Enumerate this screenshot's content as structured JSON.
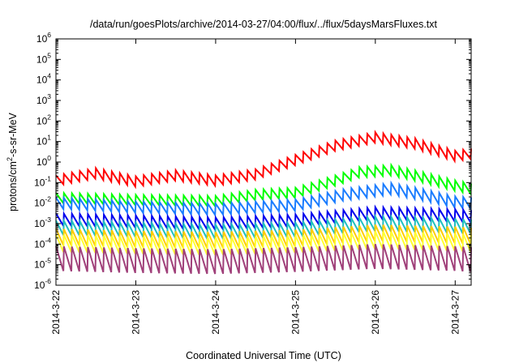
{
  "chart_data": {
    "type": "line",
    "title": "/data/run/goesPlots/archive/2014-03-27/04:00/flux/../flux/5daysMarsFluxes.txt",
    "xlabel": "Coordinated Universal Time (UTC)",
    "ylabel_main": "protons/cm",
    "ylabel_sup": "2",
    "ylabel_tail": "-s-sr-MeV",
    "xlim": [
      0,
      5.2
    ],
    "ylim_log10": [
      -6,
      6
    ],
    "y_scale": "log",
    "grid": false,
    "legend": "none",
    "x_ticks": [
      {
        "x": 0,
        "label": "2014-3-22"
      },
      {
        "x": 1,
        "label": "2014-3-23"
      },
      {
        "x": 2,
        "label": "2014-3-24"
      },
      {
        "x": 3,
        "label": "2014-3-25"
      },
      {
        "x": 4,
        "label": "2014-3-26"
      },
      {
        "x": 5,
        "label": "2014-3-27"
      }
    ],
    "y_ticks": [
      {
        "e": 6,
        "base": "10",
        "exp": "6"
      },
      {
        "e": 5,
        "base": "10",
        "exp": "5"
      },
      {
        "e": 4,
        "base": "10",
        "exp": "4"
      },
      {
        "e": 3,
        "base": "10",
        "exp": "3"
      },
      {
        "e": 2,
        "base": "10",
        "exp": "2"
      },
      {
        "e": 1,
        "base": "10",
        "exp": "1"
      },
      {
        "e": 0,
        "base": "10",
        "exp": "0"
      },
      {
        "e": -1,
        "base": "10",
        "exp": "-1"
      },
      {
        "e": -2,
        "base": "10",
        "exp": "-2"
      },
      {
        "e": -3,
        "base": "10",
        "exp": "-3"
      },
      {
        "e": -4,
        "base": "10",
        "exp": "-4"
      },
      {
        "e": -5,
        "base": "10",
        "exp": "-5"
      },
      {
        "e": -6,
        "base": "10",
        "exp": "-6"
      }
    ],
    "series": [
      {
        "color": "#ff0000",
        "base_log10": [
          [
            0,
            -0.9
          ],
          [
            0.5,
            -0.55
          ],
          [
            1,
            -0.95
          ],
          [
            1.5,
            -0.65
          ],
          [
            2,
            -0.9
          ],
          [
            2.5,
            -0.6
          ],
          [
            3,
            0.1
          ],
          [
            3.5,
            0.8
          ],
          [
            4,
            1.2
          ],
          [
            4.5,
            0.9
          ],
          [
            5,
            0.3
          ],
          [
            5.2,
            0.4
          ]
        ],
        "amp": 0.5,
        "period": 0.1
      },
      {
        "color": "#00ff00",
        "base_log10": [
          [
            0,
            -1.75
          ],
          [
            1,
            -1.85
          ],
          [
            2,
            -1.9
          ],
          [
            2.5,
            -1.6
          ],
          [
            3,
            -1.5
          ],
          [
            3.5,
            -0.9
          ],
          [
            3.8,
            -0.5
          ],
          [
            4.2,
            -0.4
          ],
          [
            4.6,
            -0.75
          ],
          [
            5,
            -1.15
          ],
          [
            5.2,
            -1.3
          ]
        ],
        "amp": 0.5,
        "period": 0.1
      },
      {
        "color": "#1a7cff",
        "base_log10": [
          [
            0,
            -2.0
          ],
          [
            1,
            -2.2
          ],
          [
            2,
            -2.3
          ],
          [
            3,
            -2.1
          ],
          [
            3.6,
            -1.6
          ],
          [
            4.2,
            -1.3
          ],
          [
            4.6,
            -1.6
          ],
          [
            5,
            -1.95
          ],
          [
            5.2,
            -2.0
          ]
        ],
        "amp": 0.55,
        "period": 0.1
      },
      {
        "color": "#0000ee",
        "base_log10": [
          [
            0,
            -2.8
          ],
          [
            1,
            -2.9
          ],
          [
            2,
            -3.0
          ],
          [
            3,
            -2.85
          ],
          [
            4,
            -2.5
          ],
          [
            5,
            -2.6
          ],
          [
            5.2,
            -2.65
          ]
        ],
        "amp": 0.6,
        "period": 0.1
      },
      {
        "color": "#20c0c0",
        "base_log10": [
          [
            0,
            -3.2
          ],
          [
            1,
            -3.3
          ],
          [
            2,
            -3.4
          ],
          [
            3,
            -3.3
          ],
          [
            4,
            -3.0
          ],
          [
            5,
            -3.1
          ],
          [
            5.2,
            -3.15
          ]
        ],
        "amp": 0.7,
        "period": 0.1
      },
      {
        "color": "#ffcc00",
        "base_log10": [
          [
            0,
            -3.65
          ],
          [
            1,
            -3.75
          ],
          [
            2,
            -3.8
          ],
          [
            3,
            -3.7
          ],
          [
            4,
            -3.45
          ],
          [
            5,
            -3.55
          ],
          [
            5.2,
            -3.6
          ]
        ],
        "amp": 0.8,
        "period": 0.1
      },
      {
        "color": "#ffff33",
        "base_log10": [
          [
            0,
            -3.95
          ],
          [
            1,
            -4.05
          ],
          [
            2,
            -4.1
          ],
          [
            3,
            -4.0
          ],
          [
            4,
            -3.8
          ],
          [
            5,
            -3.9
          ],
          [
            5.2,
            -3.95
          ]
        ],
        "amp": 0.85,
        "period": 0.1
      },
      {
        "color": "#a0407a",
        "base_log10": [
          [
            0,
            -4.7
          ],
          [
            1,
            -4.8
          ],
          [
            2,
            -4.85
          ],
          [
            3,
            -4.75
          ],
          [
            4,
            -4.6
          ],
          [
            5,
            -4.7
          ],
          [
            5.2,
            -4.75
          ]
        ],
        "amp": 1.2,
        "period": 0.1
      }
    ]
  }
}
